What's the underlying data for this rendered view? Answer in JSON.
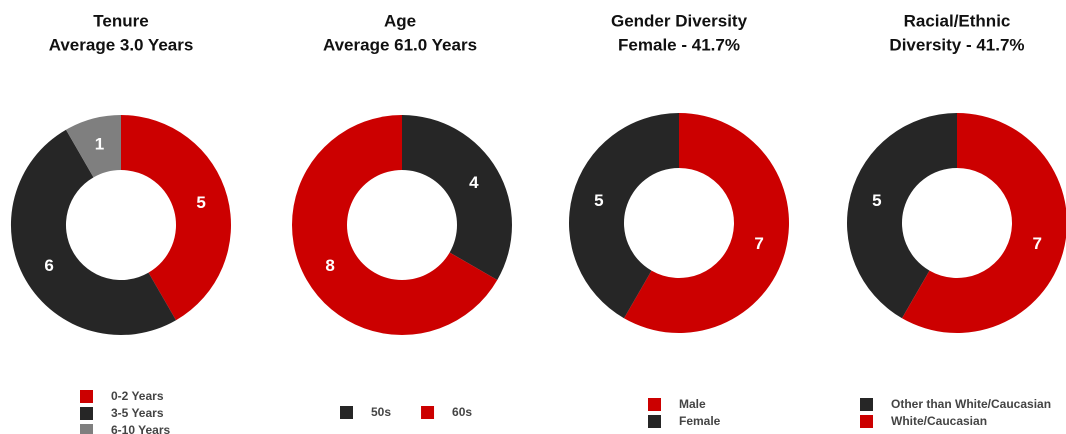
{
  "chart_data": [
    {
      "type": "pie",
      "title": "Tenure",
      "subtitle": "Average 3.0 Years",
      "direction": "clockwise",
      "legend": "bottom",
      "legend_orientation": "vertical",
      "categories": [
        "0-2 Years",
        "3-5 Years",
        "6-10 Years"
      ],
      "values": [
        5,
        6,
        1
      ],
      "colors": [
        "#cc0000",
        "#262626",
        "#7f7f7f"
      ]
    },
    {
      "type": "pie",
      "title": "Age",
      "subtitle": "Average 61.0 Years",
      "direction": "clockwise",
      "legend": "bottom",
      "legend_orientation": "horizontal",
      "categories": [
        "50s",
        "60s"
      ],
      "values": [
        4,
        8
      ],
      "colors": [
        "#262626",
        "#cc0000"
      ]
    },
    {
      "type": "pie",
      "title": "Gender Diversity",
      "subtitle": "Female - 41.7%",
      "direction": "clockwise",
      "legend": "bottom",
      "legend_orientation": "vertical",
      "categories": [
        "Male",
        "Female"
      ],
      "values": [
        7,
        5
      ],
      "colors": [
        "#cc0000",
        "#262626"
      ]
    },
    {
      "type": "pie",
      "title": "Racial/Ethnic",
      "subtitle": "Diversity - 41.7%",
      "direction": "counterclockwise",
      "legend": "bottom",
      "legend_orientation": "vertical",
      "categories": [
        "Other than White/Caucasian",
        "White/Caucasian"
      ],
      "values": [
        5,
        7
      ],
      "colors": [
        "#262626",
        "#cc0000"
      ]
    }
  ]
}
